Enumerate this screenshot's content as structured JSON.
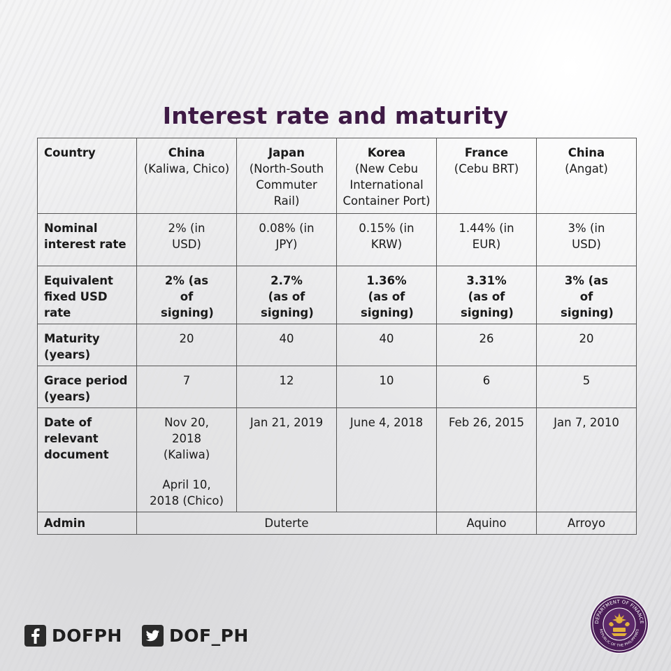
{
  "title": "Interest rate and maturity",
  "table": {
    "header": {
      "label": "Country",
      "columns": [
        {
          "name": "China",
          "sub": "(Kaliwa, Chico)"
        },
        {
          "name": "Japan",
          "sub": "(North-South Commuter Rail)"
        },
        {
          "name": "Korea",
          "sub": "(New Cebu International Container Port)"
        },
        {
          "name": "France",
          "sub": "(Cebu BRT)"
        },
        {
          "name": "China",
          "sub": "(Angat)"
        }
      ]
    },
    "rows": [
      {
        "label": "Nominal interest rate",
        "bold": false,
        "values": [
          "2% (in USD)",
          "0.08% (in JPY)",
          "0.15% (in KRW)",
          "1.44% (in EUR)",
          "3% (in USD)"
        ]
      },
      {
        "label": "Equivalent fixed USD rate",
        "bold": true,
        "values": [
          "2% (as of signing)",
          "2.7% (as of signing)",
          "1.36% (as of signing)",
          "3.31% (as of signing)",
          "3% (as of signing)"
        ]
      },
      {
        "label": "Maturity (years)",
        "bold": false,
        "values": [
          "20",
          "40",
          "40",
          "26",
          "20"
        ]
      },
      {
        "label": "Grace period (years)",
        "bold": false,
        "values": [
          "7",
          "12",
          "10",
          "6",
          "5"
        ]
      }
    ],
    "date_row": {
      "label": "Date of relevant document",
      "china_kaliwa": "Nov 20, 2018 (Kaliwa)",
      "china_chico": "April 10, 2018 (Chico)",
      "japan": "Jan 21, 2019",
      "korea": "June 4, 2018",
      "france": "Feb 26, 2015",
      "china_angat": "Jan 7, 2010"
    },
    "admin_row": {
      "label": "Admin",
      "duterte": "Duterte",
      "aquino": "Aquino",
      "arroyo": "Arroyo"
    }
  },
  "social": {
    "facebook": {
      "handle": "DOFPH",
      "icon": "facebook-icon"
    },
    "twitter": {
      "handle": "DOF_PH",
      "icon": "twitter-icon"
    }
  },
  "seal": {
    "icon": "department-of-finance-seal",
    "text_top": "DEPARTMENT OF FINANCE",
    "text_bottom": "REPUBLIC OF THE PHILIPPINES"
  },
  "colors": {
    "title": "#3e1a45",
    "seal": "#4b1d57",
    "seal_gold": "#e3b23c"
  }
}
